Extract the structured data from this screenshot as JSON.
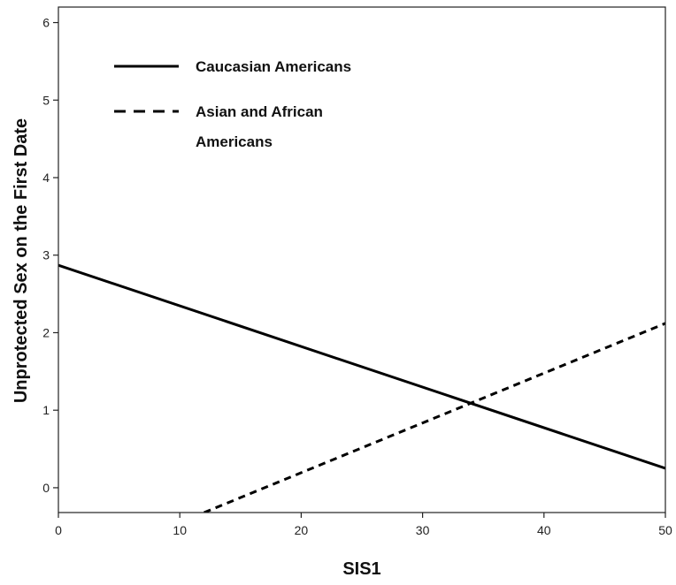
{
  "chart_data": {
    "type": "line",
    "xlabel": "SIS1",
    "ylabel": "Unprotected Sex on the First Date",
    "xlim": [
      0,
      50
    ],
    "ylim": [
      -0.32,
      6.2
    ],
    "xticks": [
      0,
      10,
      20,
      30,
      40,
      50
    ],
    "yticks": [
      0,
      1,
      2,
      3,
      4,
      5,
      6
    ],
    "grid": false,
    "legend_position": "top-left",
    "series": [
      {
        "name": "Caucasian Americans",
        "line_style": "solid",
        "color": "#000000",
        "x": [
          0,
          50
        ],
        "y": [
          2.87,
          0.25
        ]
      },
      {
        "name": "Asian and African Americans",
        "name_lines": [
          "Asian and African",
          "Americans"
        ],
        "line_style": "dashed",
        "color": "#000000",
        "x": [
          12,
          50
        ],
        "y": [
          -0.32,
          2.12
        ]
      }
    ]
  }
}
